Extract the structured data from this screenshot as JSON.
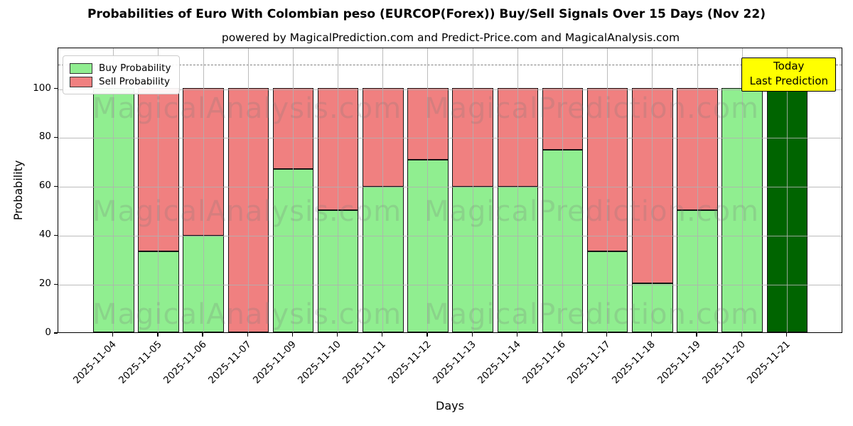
{
  "title": "Probabilities of Euro With Colombian peso (EURCOP(Forex)) Buy/Sell Signals Over 15 Days (Nov 22)",
  "subtitle": "powered by MagicalPrediction.com and Predict-Price.com and MagicalAnalysis.com",
  "legend": {
    "items": [
      {
        "label": "Buy Probability",
        "color": "#90EE90"
      },
      {
        "label": "Sell Probability",
        "color": "#F08080"
      }
    ]
  },
  "annotation": {
    "line1": "Today",
    "line2": "Last Prediction",
    "bg_color": "#FFFF00"
  },
  "watermarks": {
    "left_text": "MagicalAnalysis.com",
    "right_text": "MagicalPrediction.com"
  },
  "chart_data": {
    "type": "bar",
    "stacked": true,
    "title": "Probabilities of Euro With Colombian peso (EURCOP(Forex)) Buy/Sell Signals Over 15 Days (Nov 22)",
    "xlabel": "Days",
    "ylabel": "Probability",
    "categories": [
      "2025-11-04",
      "2025-11-05",
      "2025-11-06",
      "2025-11-07",
      "2025-11-09",
      "2025-11-10",
      "2025-11-11",
      "2025-11-12",
      "2025-11-13",
      "2025-11-14",
      "2025-11-16",
      "2025-11-17",
      "2025-11-18",
      "2025-11-19",
      "2025-11-20",
      "2025-11-21"
    ],
    "series": [
      {
        "name": "Buy Probability",
        "color": "#90EE90",
        "values": [
          100,
          33,
          39.5,
          0,
          66.7,
          50,
          59.5,
          70.5,
          59.5,
          59.5,
          74.5,
          33,
          20,
          50,
          100,
          100
        ]
      },
      {
        "name": "Sell Probability",
        "color": "#F08080",
        "values": [
          0,
          67,
          60.5,
          100,
          33.3,
          50,
          40.5,
          29.5,
          40.5,
          40.5,
          25.5,
          67,
          80,
          50,
          0,
          0
        ]
      }
    ],
    "today_bar_index": 15,
    "today_bar_color": "#006400",
    "yticks": [
      0,
      20,
      40,
      60,
      80,
      100
    ],
    "ylim": [
      0,
      116.7
    ],
    "dashed_line_y": 110,
    "grid": true,
    "legend_position": "upper left"
  }
}
